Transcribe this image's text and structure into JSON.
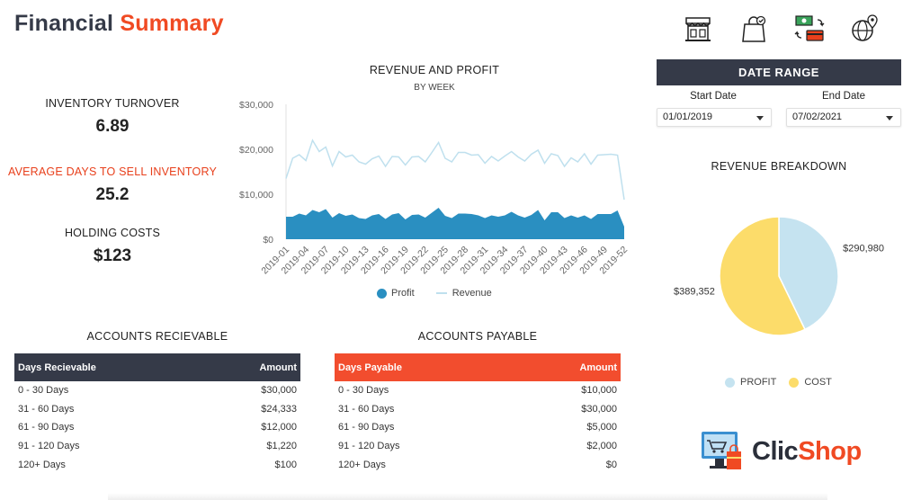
{
  "title": {
    "part1": "Financial",
    "part2": "Summary"
  },
  "header_icons": [
    "storefront-icon",
    "shopping-bag-icon",
    "payment-exchange-icon",
    "global-location-icon"
  ],
  "kpis": {
    "inventory_turnover": {
      "label": "INVENTORY TURNOVER",
      "value": "6.89"
    },
    "avg_days": {
      "label": "AVERAGE DAYS TO SELL INVENTORY",
      "value": "25.2"
    },
    "holding_costs": {
      "label": "HOLDING COSTS",
      "value": "$123"
    }
  },
  "colors": {
    "accent": "#f04a23",
    "dark": "#353a48",
    "profit": "#2a8fc1",
    "revenue": "#bfe0ee",
    "pie_profit": "#c5e3f0",
    "pie_cost": "#fcdc6a"
  },
  "chart_data": [
    {
      "type": "area",
      "title": "REVENUE AND PROFIT",
      "subtitle": "BY WEEK",
      "y_ticks": [
        "$30,000",
        "$20,000",
        "$10,000",
        "$0"
      ],
      "ylim": [
        0,
        30000
      ],
      "x_tick_labels": [
        "2019-01",
        "2019-04",
        "2019-07",
        "2019-10",
        "2019-13",
        "2019-16",
        "2019-19",
        "2019-22",
        "2019-25",
        "2019-28",
        "2019-31",
        "2019-34",
        "2019-37",
        "2019-40",
        "2019-43",
        "2019-46",
        "2019-49",
        "2019-52"
      ],
      "legend": {
        "profit": "Profit",
        "revenue": "Revenue"
      },
      "series": [
        {
          "name": "Revenue",
          "style": "line",
          "values": [
            13500,
            18000,
            18800,
            17500,
            22000,
            19500,
            20500,
            16300,
            19500,
            18300,
            18700,
            17200,
            16700,
            17900,
            18500,
            16200,
            18400,
            18300,
            16500,
            18300,
            18400,
            17200,
            19300,
            21500,
            18000,
            17200,
            19300,
            19300,
            18700,
            18800,
            16900,
            18400,
            17400,
            18500,
            19500,
            18300,
            17400,
            18900,
            19800,
            16900,
            19000,
            18600,
            16200,
            18100,
            17200,
            19000,
            16700,
            18700,
            18800,
            18900,
            18700,
            8800
          ]
        },
        {
          "name": "Profit",
          "style": "area",
          "values": [
            5000,
            5000,
            5700,
            5300,
            6500,
            6000,
            6700,
            4800,
            5800,
            5200,
            5500,
            4700,
            4500,
            5300,
            5600,
            4500,
            5500,
            5800,
            4400,
            5400,
            5500,
            4800,
            5900,
            7000,
            5200,
            4700,
            5700,
            5700,
            5600,
            5300,
            4700,
            5300,
            5000,
            5300,
            6100,
            5300,
            4800,
            5400,
            6500,
            4200,
            6000,
            6000,
            4700,
            5300,
            4800,
            5300,
            4500,
            5600,
            5600,
            5600,
            6400,
            2800
          ]
        }
      ]
    },
    {
      "type": "pie",
      "title": "REVENUE BREAKDOWN",
      "slices": [
        {
          "name": "PROFIT",
          "value": 290980,
          "label": "$290,980"
        },
        {
          "name": "COST",
          "value": 389352,
          "label": "$389,352"
        }
      ]
    }
  ],
  "date_range": {
    "title": "DATE RANGE",
    "start": {
      "label": "Start Date",
      "value": "01/01/2019"
    },
    "end": {
      "label": "End Date",
      "value": "07/02/2021"
    }
  },
  "receivable": {
    "title": "ACCOUNTS RECIEVABLE",
    "col1": "Days Recievable",
    "col2": "Amount",
    "rows": [
      {
        "days": "0 - 30 Days",
        "amount": "$30,000"
      },
      {
        "days": "31 - 60 Days",
        "amount": "$24,333"
      },
      {
        "days": "61 - 90 Days",
        "amount": "$12,000"
      },
      {
        "days": "91 - 120 Days",
        "amount": "$1,220"
      },
      {
        "days": "120+ Days",
        "amount": "$100"
      }
    ]
  },
  "payable": {
    "title": "ACCOUNTS PAYABLE",
    "col1": "Days Payable",
    "col2": "Amount",
    "rows": [
      {
        "days": "0 - 30 Days",
        "amount": "$10,000"
      },
      {
        "days": "31 - 60 Days",
        "amount": "$30,000"
      },
      {
        "days": "61 - 90 Days",
        "amount": "$5,000"
      },
      {
        "days": "91 - 120 Days",
        "amount": "$2,000"
      },
      {
        "days": "120+ Days",
        "amount": "$0"
      }
    ]
  },
  "logo": {
    "part1": "Clic",
    "part2": "Shop"
  }
}
